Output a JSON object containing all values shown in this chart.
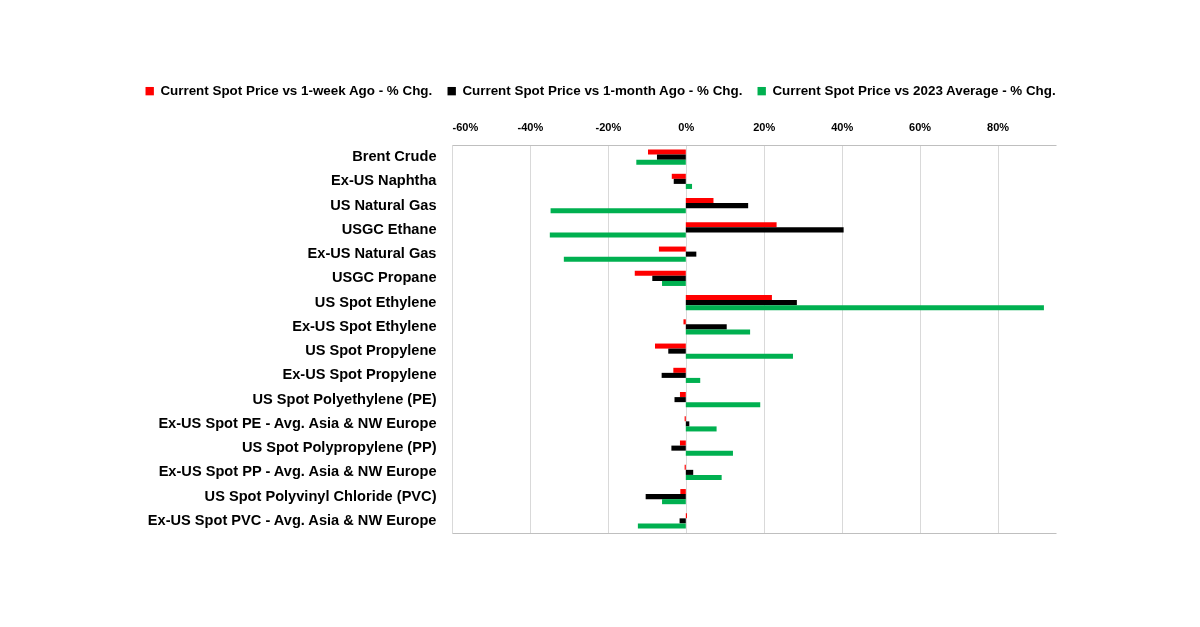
{
  "chart_data": {
    "type": "bar",
    "orientation": "horizontal",
    "categories": [
      "Brent Crude",
      "Ex-US Naphtha",
      "US Natural Gas",
      "USGC Ethane",
      "Ex-US Natural Gas",
      "USGC Propane",
      "US Spot Ethylene",
      "Ex-US Spot Ethylene",
      "US Spot Propylene",
      "Ex-US Spot Propylene",
      "US Spot Polyethylene (PE)",
      "Ex-US Spot PE - Avg. Asia & NW Europe",
      "US Spot Polypropylene (PP)",
      "Ex-US Spot PP - Avg. Asia & NW Europe",
      "US Spot Polyvinyl Chloride (PVC)",
      "Ex-US Spot PVC - Avg. Asia & NW Europe"
    ],
    "series": [
      {
        "name": "Current Spot Price vs 1-week Ago - % Chg.",
        "color": "#ff0000",
        "values": [
          -9.7,
          -3.6,
          7.1,
          23.3,
          -6.9,
          -13.1,
          22.1,
          -0.6,
          -7.9,
          -3.2,
          -1.5,
          -0.3,
          -1.5,
          -0.3,
          -1.4,
          0.3
        ]
      },
      {
        "name": "Current Spot Price vs 1-month Ago - % Chg.",
        "color": "#000000",
        "values": [
          -7.4,
          -3.1,
          16.0,
          40.5,
          2.7,
          -8.6,
          28.5,
          10.5,
          -4.5,
          -6.2,
          -2.9,
          0.9,
          -3.7,
          1.9,
          -10.3,
          -1.6
        ]
      },
      {
        "name": "Current Spot Price vs 2023 Average - % Chg.",
        "color": "#00b050",
        "values": [
          -12.7,
          1.6,
          -34.7,
          -34.9,
          -31.3,
          -6.1,
          91.9,
          16.5,
          27.5,
          3.7,
          19.1,
          7.9,
          12.1,
          9.2,
          -6.1,
          -12.3
        ]
      }
    ],
    "xlim": [
      -60,
      95
    ],
    "xticks": [
      {
        "value": -60,
        "label": "-60%"
      },
      {
        "value": -40,
        "label": "-40%"
      },
      {
        "value": -20,
        "label": "-20%"
      },
      {
        "value": 0,
        "label": "0%"
      },
      {
        "value": 20,
        "label": "20%"
      },
      {
        "value": 40,
        "label": "40%"
      },
      {
        "value": 60,
        "label": "60%"
      },
      {
        "value": 80,
        "label": "80%"
      }
    ],
    "grid": "x",
    "legend": "top"
  }
}
